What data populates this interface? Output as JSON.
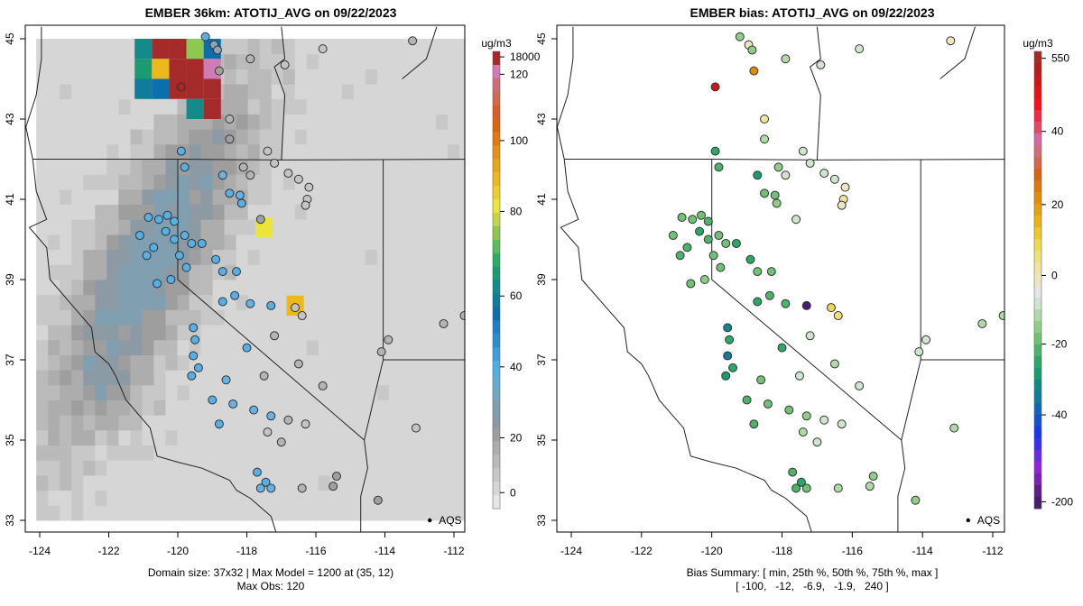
{
  "chart_data": [
    {
      "type": "heatmap",
      "title": "EMBER 36km: ATOTIJ_AVG on 09/22/2023",
      "xlabel": "",
      "ylabel": "",
      "x_ticks": [
        "-124",
        "-122",
        "-120",
        "-118",
        "-116",
        "-114",
        "-112"
      ],
      "y_ticks": [
        "33",
        "35",
        "37",
        "39",
        "41",
        "43",
        "45"
      ],
      "xlim": [
        -124.3,
        -111.7
      ],
      "ylim": [
        32.8,
        45.1
      ],
      "colorbar": {
        "unit": "ug/m3",
        "tick_labels": [
          "0",
          "20",
          "40",
          "60",
          "80",
          "100",
          "120",
          "18000"
        ],
        "colors": [
          "#e6e6e6",
          "#d6d6d6",
          "#c8c8c8",
          "#bababa",
          "#adadad",
          "#9e9e9e",
          "#8c9aa3",
          "#809fb0",
          "#72a6c1",
          "#61abd6",
          "#4fb0e4",
          "#3aa0dc",
          "#2a8fcf",
          "#1e80c4",
          "#0b6fae",
          "#0f7c99",
          "#138b8a",
          "#1b9a74",
          "#2eab66",
          "#5abd5b",
          "#8fc850",
          "#c3d648",
          "#ebe43a",
          "#eecd2f",
          "#ecb91c",
          "#e9a614",
          "#e6900f",
          "#e37a0d",
          "#df6410",
          "#d95e23",
          "#d26a4e",
          "#cc6d78",
          "#d27ab3",
          "#a52a2a"
        ],
        "placement": "right"
      },
      "footer_line1": "Domain size: 37x32 | Max Model = 1200 at (35, 12)",
      "footer_line2": "Max Obs: 120",
      "monitor_legend": "AQS",
      "grid_cells_note": "model field rendered as 36km grid cells; mostly 0-20 ug/m3 with high values (>100) near lon -120, lat 44-45",
      "hotspots": [
        {
          "lon": -120.5,
          "lat": 44.75,
          "value": 1200,
          "color": "#a52a2a"
        },
        {
          "lon": -120.0,
          "lat": 44.75,
          "value": 1200,
          "color": "#a52a2a"
        },
        {
          "lon": -119.5,
          "lat": 44.75,
          "value": 68,
          "color": "#8fc850"
        },
        {
          "lon": -121.0,
          "lat": 44.75,
          "value": 57,
          "color": "#138b8a"
        },
        {
          "lon": -119.0,
          "lat": 44.75,
          "value": 45,
          "color": "#0b6fae"
        },
        {
          "lon": -121.0,
          "lat": 44.25,
          "value": 60,
          "color": "#1b9a74"
        },
        {
          "lon": -120.5,
          "lat": 44.25,
          "value": 88,
          "color": "#ecb91c"
        },
        {
          "lon": -120.0,
          "lat": 44.25,
          "value": 1200,
          "color": "#a52a2a"
        },
        {
          "lon": -119.5,
          "lat": 44.25,
          "value": 1200,
          "color": "#a52a2a"
        },
        {
          "lon": -119.0,
          "lat": 44.25,
          "value": 125,
          "color": "#d27ab3"
        },
        {
          "lon": -121.0,
          "lat": 43.75,
          "value": 50,
          "color": "#0f7c99"
        },
        {
          "lon": -120.5,
          "lat": 43.75,
          "value": 42,
          "color": "#0b6fae"
        },
        {
          "lon": -120.0,
          "lat": 43.75,
          "value": 1200,
          "color": "#a52a2a"
        },
        {
          "lon": -119.5,
          "lat": 43.75,
          "value": 1200,
          "color": "#a52a2a"
        },
        {
          "lon": -119.0,
          "lat": 43.75,
          "value": 1200,
          "color": "#a52a2a"
        },
        {
          "lon": -119.5,
          "lat": 43.25,
          "value": 56,
          "color": "#138b8a"
        },
        {
          "lon": -119.0,
          "lat": 43.25,
          "value": 1200,
          "color": "#a52a2a"
        },
        {
          "lon": -117.5,
          "lat": 40.3,
          "value": 76,
          "color": "#ebe43a"
        },
        {
          "lon": -116.6,
          "lat": 38.35,
          "value": 90,
          "color": "#ecb91c"
        }
      ]
    },
    {
      "type": "scatter",
      "title": "EMBER bias: ATOTIJ_AVG on 09/22/2023",
      "xlabel": "",
      "ylabel": "",
      "x_ticks": [
        "-124",
        "-122",
        "-120",
        "-118",
        "-116",
        "-114",
        "-112"
      ],
      "y_ticks": [
        "33",
        "35",
        "37",
        "39",
        "41",
        "43",
        "45"
      ],
      "xlim": [
        -124.3,
        -111.7
      ],
      "ylim": [
        32.8,
        45.1
      ],
      "colorbar": {
        "unit": "ug/m3",
        "tick_labels": [
          "-200",
          "-40",
          "-20",
          "0",
          "20",
          "40",
          "550"
        ],
        "colors": [
          "#4a1c6e",
          "#5c1f8a",
          "#7a22b5",
          "#9425d6",
          "#6a2ce0",
          "#3a30ee",
          "#1a3ae8",
          "#1550d0",
          "#1366b4",
          "#117b9a",
          "#0e8a86",
          "#189a72",
          "#2aa867",
          "#4bb468",
          "#6fc274",
          "#8fcd88",
          "#b0dba9",
          "#cfe5cd",
          "#e6e6e6",
          "#ebe6c2",
          "#eee49e",
          "#efe07a",
          "#f0d84e",
          "#eec72a",
          "#eab413",
          "#e6a00f",
          "#e28c0e",
          "#dd780c",
          "#d6640f",
          "#d46a4a",
          "#cf6e7c",
          "#d46aa3",
          "#e24a6a",
          "#ee2a45",
          "#f80f1d",
          "#e41414",
          "#c81818",
          "#b21e1e",
          "#a52a2a"
        ],
        "placement": "right"
      },
      "footer_line1": "Bias Summary: [ min, 25th %, 50th %, 75th %, max ]",
      "footer_line2": "[ -100,   -12,   -6.9,   -1.9,   240 ]",
      "bias_summary": {
        "min": -100,
        "p25": -12,
        "p50": -6.9,
        "p75": -1.9,
        "max": 240
      },
      "monitor_legend": "AQS"
    }
  ],
  "sites": [
    {
      "lon": -119.2,
      "lat": 45.05,
      "obs": 28,
      "bias": -8
    },
    {
      "lon": -118.95,
      "lat": 44.85,
      "obs": 10,
      "bias": 3
    },
    {
      "lon": -118.85,
      "lat": 44.72,
      "obs": 12,
      "bias": -9
    },
    {
      "lon": -117.9,
      "lat": 44.5,
      "obs": 6,
      "bias": -4
    },
    {
      "lon": -118.8,
      "lat": 44.2,
      "obs": 7,
      "bias": 25
    },
    {
      "lon": -119.9,
      "lat": 43.8,
      "obs": 120,
      "bias": 240
    },
    {
      "lon": -115.8,
      "lat": 44.75,
      "obs": 4,
      "bias": -1
    },
    {
      "lon": -116.9,
      "lat": 44.35,
      "obs": 4,
      "bias": -2
    },
    {
      "lon": -113.2,
      "lat": 44.95,
      "obs": 5,
      "bias": 4
    },
    {
      "lon": -118.5,
      "lat": 43.0,
      "obs": 6,
      "bias": 6
    },
    {
      "lon": -118.5,
      "lat": 42.5,
      "obs": 8,
      "bias": -4
    },
    {
      "lon": -117.4,
      "lat": 42.2,
      "obs": 4,
      "bias": -1
    },
    {
      "lon": -118.1,
      "lat": 41.8,
      "obs": 6,
      "bias": -8
    },
    {
      "lon": -117.9,
      "lat": 41.6,
      "obs": 6,
      "bias": -3
    },
    {
      "lon": -117.2,
      "lat": 41.9,
      "obs": 4,
      "bias": -1
    },
    {
      "lon": -116.8,
      "lat": 41.65,
      "obs": 4,
      "bias": -1
    },
    {
      "lon": -116.5,
      "lat": 41.5,
      "obs": 4,
      "bias": -1
    },
    {
      "lon": -116.2,
      "lat": 41.3,
      "obs": 3,
      "bias": 3
    },
    {
      "lon": -116.25,
      "lat": 41.0,
      "obs": 3,
      "bias": 6
    },
    {
      "lon": -116.3,
      "lat": 40.85,
      "obs": 3,
      "bias": 4
    },
    {
      "lon": -119.9,
      "lat": 42.2,
      "obs": 28,
      "bias": -18
    },
    {
      "lon": -119.8,
      "lat": 41.8,
      "obs": 28,
      "bias": -15
    },
    {
      "lon": -118.7,
      "lat": 41.6,
      "obs": 24,
      "bias": -20
    },
    {
      "lon": -118.5,
      "lat": 41.15,
      "obs": 27,
      "bias": -12
    },
    {
      "lon": -118.2,
      "lat": 41.1,
      "obs": 24,
      "bias": -10
    },
    {
      "lon": -118.15,
      "lat": 40.9,
      "obs": 26,
      "bias": -8
    },
    {
      "lon": -117.6,
      "lat": 40.5,
      "obs": 9,
      "bias": -2
    },
    {
      "lon": -120.3,
      "lat": 40.6,
      "obs": 28,
      "bias": -12
    },
    {
      "lon": -120.1,
      "lat": 40.45,
      "obs": 30,
      "bias": -14
    },
    {
      "lon": -119.8,
      "lat": 40.1,
      "obs": 30,
      "bias": -10
    },
    {
      "lon": -119.6,
      "lat": 39.9,
      "obs": 28,
      "bias": -10
    },
    {
      "lon": -119.3,
      "lat": 39.9,
      "obs": 29,
      "bias": -16
    },
    {
      "lon": -118.9,
      "lat": 39.5,
      "obs": 28,
      "bias": -18
    },
    {
      "lon": -118.7,
      "lat": 39.2,
      "obs": 26,
      "bias": -10
    },
    {
      "lon": -118.3,
      "lat": 39.2,
      "obs": 27,
      "bias": -12
    },
    {
      "lon": -118.35,
      "lat": 38.6,
      "obs": 25,
      "bias": -14
    },
    {
      "lon": -118.7,
      "lat": 38.45,
      "obs": 27,
      "bias": -18
    },
    {
      "lon": -117.9,
      "lat": 38.4,
      "obs": 24,
      "bias": -13
    },
    {
      "lon": -117.3,
      "lat": 38.35,
      "obs": 95,
      "bias": -100
    },
    {
      "lon": -116.6,
      "lat": 38.3,
      "obs": 4,
      "bias": 12
    },
    {
      "lon": -116.4,
      "lat": 38.1,
      "obs": 4,
      "bias": 10
    },
    {
      "lon": -117.2,
      "lat": 37.6,
      "obs": 5,
      "bias": -3
    },
    {
      "lon": -116.5,
      "lat": 36.9,
      "obs": 5,
      "bias": -4
    },
    {
      "lon": -117.5,
      "lat": 36.6,
      "obs": 5,
      "bias": -1
    },
    {
      "lon": -115.8,
      "lat": 36.35,
      "obs": 6,
      "bias": -3
    },
    {
      "lon": -118.0,
      "lat": 37.3,
      "obs": 26,
      "bias": -16
    },
    {
      "lon": -118.6,
      "lat": 36.5,
      "obs": 24,
      "bias": -12
    },
    {
      "lon": -119.0,
      "lat": 36.0,
      "obs": 27,
      "bias": -15
    },
    {
      "lon": -119.55,
      "lat": 37.8,
      "obs": 28,
      "bias": -22
    },
    {
      "lon": -119.5,
      "lat": 37.5,
      "obs": 26,
      "bias": -18
    },
    {
      "lon": -119.55,
      "lat": 37.1,
      "obs": 30,
      "bias": -25
    },
    {
      "lon": -119.4,
      "lat": 36.8,
      "obs": 27,
      "bias": -17
    },
    {
      "lon": -119.6,
      "lat": 36.6,
      "obs": 28,
      "bias": -19
    },
    {
      "lon": -120.6,
      "lat": 38.9,
      "obs": 28,
      "bias": -10
    },
    {
      "lon": -120.9,
      "lat": 39.6,
      "obs": 28,
      "bias": -14
    },
    {
      "lon": -121.1,
      "lat": 40.1,
      "obs": 27,
      "bias": -12
    },
    {
      "lon": -120.7,
      "lat": 39.8,
      "obs": 27,
      "bias": -15
    },
    {
      "lon": -120.2,
      "lat": 39.0,
      "obs": 25,
      "bias": -8
    },
    {
      "lon": -118.8,
      "lat": 35.4,
      "obs": 26,
      "bias": -15
    },
    {
      "lon": -118.4,
      "lat": 35.9,
      "obs": 24,
      "bias": -12
    },
    {
      "lon": -117.8,
      "lat": 35.75,
      "obs": 24,
      "bias": -10
    },
    {
      "lon": -117.3,
      "lat": 35.6,
      "obs": 24,
      "bias": -9
    },
    {
      "lon": -116.8,
      "lat": 35.5,
      "obs": 6,
      "bias": -2
    },
    {
      "lon": -116.3,
      "lat": 35.4,
      "obs": 4,
      "bias": -1
    },
    {
      "lon": -117.4,
      "lat": 35.2,
      "obs": 4,
      "bias": -4
    },
    {
      "lon": -117.0,
      "lat": 34.95,
      "obs": 5,
      "bias": -3
    },
    {
      "lon": -117.7,
      "lat": 34.2,
      "obs": 25,
      "bias": -14
    },
    {
      "lon": -117.6,
      "lat": 33.8,
      "obs": 24,
      "bias": -13
    },
    {
      "lon": -117.45,
      "lat": 33.95,
      "obs": 26,
      "bias": -16
    },
    {
      "lon": -117.3,
      "lat": 33.8,
      "obs": 23,
      "bias": -11
    },
    {
      "lon": -116.4,
      "lat": 33.8,
      "obs": 6,
      "bias": -4
    },
    {
      "lon": -115.5,
      "lat": 33.85,
      "obs": 7,
      "bias": -6
    },
    {
      "lon": -115.4,
      "lat": 34.1,
      "obs": 8,
      "bias": -7
    },
    {
      "lon": -114.2,
      "lat": 33.5,
      "obs": 9,
      "bias": -9
    },
    {
      "lon": -113.9,
      "lat": 37.5,
      "obs": 5,
      "bias": -1
    },
    {
      "lon": -114.1,
      "lat": 37.2,
      "obs": 6,
      "bias": -3
    },
    {
      "lon": -113.1,
      "lat": 35.3,
      "obs": 4,
      "bias": -4
    },
    {
      "lon": -112.3,
      "lat": 37.9,
      "obs": 6,
      "bias": -6
    },
    {
      "lon": -111.7,
      "lat": 38.1,
      "obs": 5,
      "bias": -4
    },
    {
      "lon": -120.85,
      "lat": 40.55,
      "obs": 28,
      "bias": -12
    },
    {
      "lon": -120.55,
      "lat": 40.5,
      "obs": 28,
      "bias": -11
    },
    {
      "lon": -120.35,
      "lat": 40.2,
      "obs": 30,
      "bias": -16
    },
    {
      "lon": -120.1,
      "lat": 40.0,
      "obs": 28,
      "bias": -13
    },
    {
      "lon": -119.95,
      "lat": 39.6,
      "obs": 27,
      "bias": -10
    },
    {
      "lon": -119.75,
      "lat": 39.3,
      "obs": 26,
      "bias": -12
    }
  ],
  "annotations": {
    "aqs_label": "AQS"
  }
}
